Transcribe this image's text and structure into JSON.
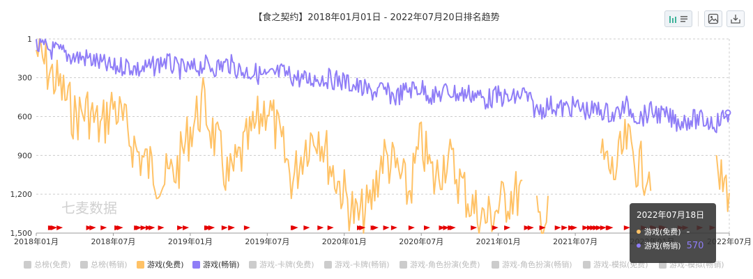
{
  "window": {
    "title": "【食之契约】2018年01月01日 - 2022年07月20日排名趋势"
  },
  "toolbar": {
    "icons": [
      "chart-toggle-icon",
      "list-icon",
      "image-download-icon",
      "download-icon"
    ]
  },
  "watermark": "七麦数据",
  "colors": {
    "free": "#ffc266",
    "paid": "#8f7df7",
    "flag": "#e50000",
    "grid": "#cccccc",
    "disabled": "#cccccc"
  },
  "tooltip": {
    "date": "2022年07月18日",
    "rows": [
      {
        "label": "游戏(免费)",
        "value": "-",
        "color": "#ffc266"
      },
      {
        "label": "游戏(畅销)",
        "value": "570",
        "color": "#8f7df7"
      }
    ]
  },
  "legend": [
    {
      "label": "总榜(免费)",
      "active": false
    },
    {
      "label": "总榜(畅销)",
      "active": false
    },
    {
      "label": "游戏(免费)",
      "active": true,
      "color": "#ffc266"
    },
    {
      "label": "游戏(畅销)",
      "active": true,
      "color": "#8f7df7"
    },
    {
      "label": "游戏-卡牌(免费)",
      "active": false
    },
    {
      "label": "游戏-卡牌(畅销)",
      "active": false
    },
    {
      "label": "游戏-角色扮演(免费)",
      "active": false
    },
    {
      "label": "游戏-角色扮演(畅销)",
      "active": false
    },
    {
      "label": "游戏-模拟(免费)",
      "active": false
    },
    {
      "label": "游戏-模拟(畅销)",
      "active": false
    }
  ],
  "chart_data": {
    "type": "line",
    "title": "【食之契约】2018年01月01日 - 2022年07月20日排名趋势",
    "y_inverted": true,
    "ylim": [
      1,
      1500
    ],
    "yticks": [
      "1",
      "300",
      "600",
      "900",
      "1,200",
      "1,500"
    ],
    "ytick_values": [
      1,
      300,
      600,
      900,
      1200,
      1500
    ],
    "xticks": [
      "2018年01月",
      "2018年07月",
      "2019年01月",
      "2019年07月",
      "2020年01月",
      "2020年07月",
      "2021年01月",
      "2021年07月",
      "2022年01月",
      "2022年07月"
    ],
    "x_range": [
      "2018-01",
      "2022-07"
    ],
    "grid": true,
    "legend_position": "bottom",
    "series": [
      {
        "name": "游戏(畅销)",
        "color": "#8f7df7",
        "x": [
          "2018-01",
          "2018-02",
          "2018-03",
          "2018-04",
          "2018-05",
          "2018-06",
          "2018-07",
          "2018-08",
          "2018-09",
          "2018-10",
          "2018-11",
          "2018-12",
          "2019-01",
          "2019-02",
          "2019-03",
          "2019-04",
          "2019-05",
          "2019-06",
          "2019-07",
          "2019-08",
          "2019-09",
          "2019-10",
          "2019-11",
          "2019-12",
          "2020-01",
          "2020-02",
          "2020-03",
          "2020-04",
          "2020-05",
          "2020-06",
          "2020-07",
          "2020-08",
          "2020-09",
          "2020-10",
          "2020-11",
          "2020-12",
          "2021-01",
          "2021-02",
          "2021-03",
          "2021-04",
          "2021-05",
          "2021-06",
          "2021-07",
          "2021-08",
          "2021-09",
          "2021-10",
          "2021-11",
          "2021-12",
          "2022-01",
          "2022-02",
          "2022-03",
          "2022-04",
          "2022-05",
          "2022-06",
          "2022-07"
        ],
        "values": [
          60,
          80,
          110,
          140,
          150,
          190,
          230,
          200,
          240,
          220,
          170,
          230,
          240,
          200,
          220,
          190,
          250,
          260,
          300,
          260,
          290,
          320,
          300,
          310,
          330,
          370,
          410,
          400,
          450,
          390,
          380,
          450,
          400,
          430,
          420,
          470,
          440,
          470,
          420,
          560,
          510,
          540,
          520,
          560,
          550,
          590,
          520,
          610,
          560,
          600,
          640,
          620,
          630,
          650,
          570
        ]
      },
      {
        "name": "游戏(免费)",
        "color": "#ffc266",
        "x": [
          "2018-01",
          "2018-02",
          "2018-03",
          "2018-04",
          "2018-05",
          "2018-06",
          "2018-07",
          "2018-08",
          "2018-09",
          "2018-10",
          "2018-11",
          "2018-12",
          "2019-01",
          "2019-02",
          "2019-03",
          "2019-04",
          "2019-05",
          "2019-06",
          "2019-07",
          "2019-08",
          "2019-09",
          "2019-10",
          "2019-11",
          "2019-12",
          "2020-01",
          "2020-02",
          "2020-03",
          "2020-04",
          "2020-05",
          "2020-06",
          "2020-07",
          "2020-08",
          "2020-09",
          "2020-10",
          "2020-11",
          "2020-12",
          "2021-01",
          "2021-02",
          "2021-03",
          "2021-04",
          "2021-05",
          "2021-06",
          "2021-07",
          "2021-08",
          "2021-09",
          "2021-10",
          "2021-11",
          "2021-12",
          "2022-01",
          "2022-02",
          "2022-03",
          "2022-04",
          "2022-05",
          "2022-06",
          "2022-07"
        ],
        "values": [
          90,
          250,
          400,
          600,
          550,
          700,
          500,
          700,
          900,
          1000,
          1100,
          1000,
          700,
          500,
          800,
          1100,
          900,
          700,
          500,
          800,
          1100,
          800,
          700,
          1000,
          1200,
          1400,
          1300,
          900,
          1000,
          1200,
          800,
          1100,
          900,
          1100,
          1300,
          1400,
          1300,
          1200,
          null,
          1400,
          null,
          null,
          null,
          null,
          900,
          1050,
          800,
          1000,
          null,
          null,
          null,
          null,
          null,
          1100,
          1150
        ]
      }
    ],
    "flags": 75
  }
}
